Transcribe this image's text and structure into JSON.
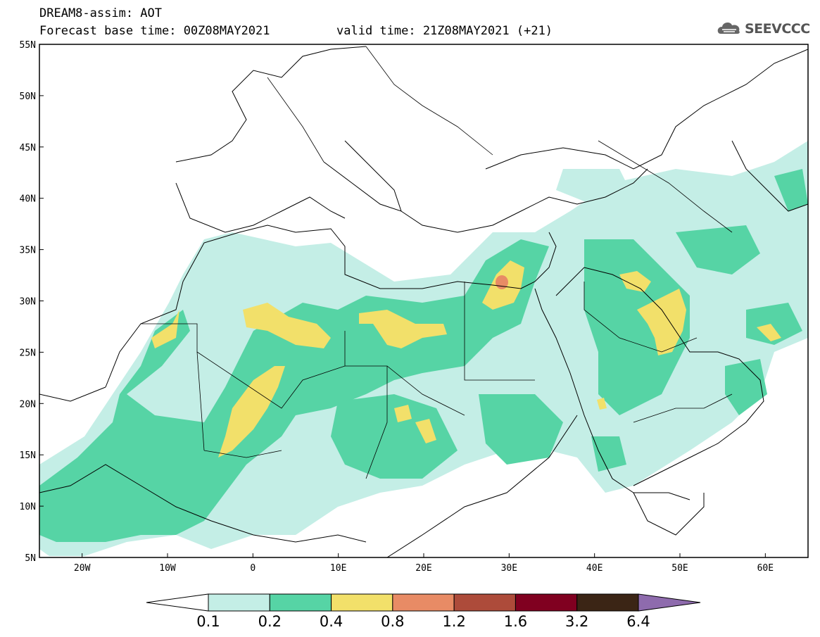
{
  "header": {
    "model_title": "DREAM8-assim: AOT",
    "base_time": "Forecast base time: 00Z08MAY2021",
    "valid_time": "valid time: 21Z08MAY2021 (+21)"
  },
  "logo": {
    "text": "SEEVCCC",
    "icon": "cloud-icon"
  },
  "map": {
    "lat_labels": [
      "55N",
      "50N",
      "45N",
      "40N",
      "35N",
      "30N",
      "25N",
      "20N",
      "15N",
      "10N",
      "5N"
    ],
    "lon_labels": [
      "20W",
      "10W",
      "0",
      "10E",
      "20E",
      "30E",
      "40E",
      "50E",
      "60E"
    ],
    "lon_range": [
      -25,
      65
    ],
    "lat_range": [
      5,
      55
    ]
  },
  "colorbar": {
    "labels": [
      "0.1",
      "0.2",
      "0.4",
      "0.8",
      "1.2",
      "1.6",
      "3.2",
      "6.4"
    ],
    "colors": [
      "#ffffff",
      "#c4eee6",
      "#56d4a5",
      "#f2e06a",
      "#e88b65",
      "#ad4b3a",
      "#800020",
      "#3b2515",
      "#8e6bad"
    ]
  }
}
